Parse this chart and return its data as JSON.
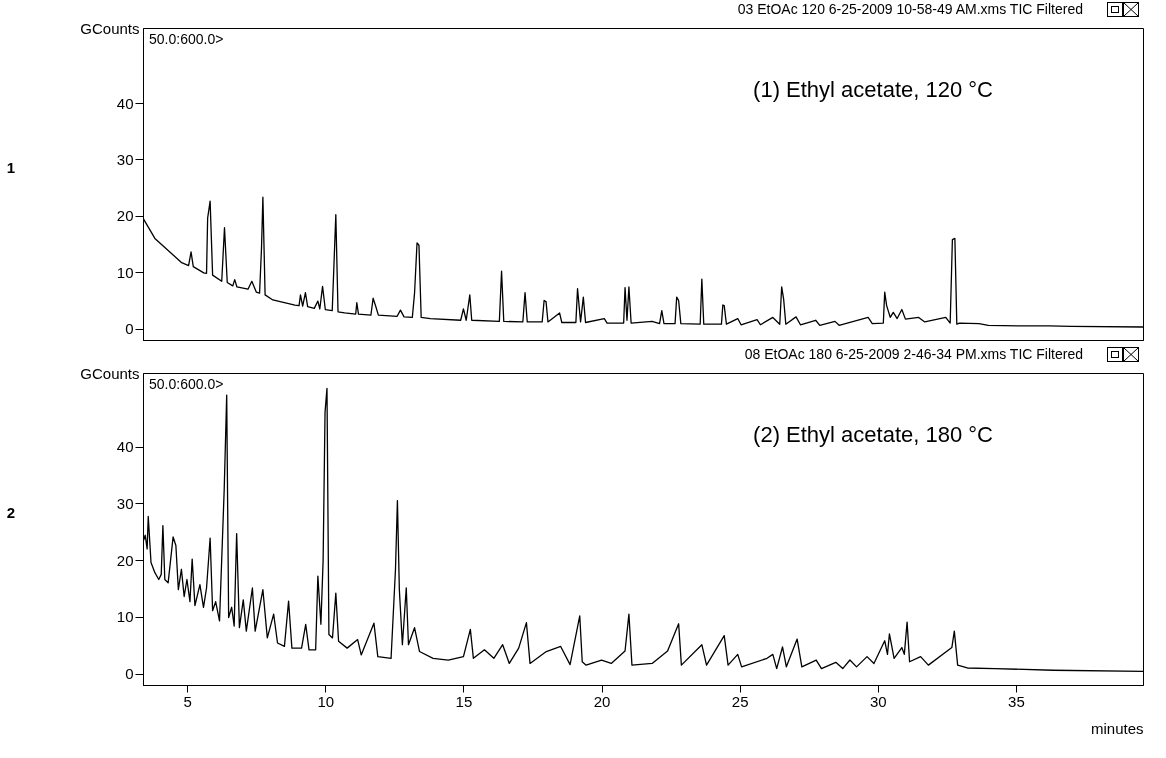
{
  "chart_data": [
    {
      "type": "line",
      "title": "03 EtOAc 120 6-25-2009 10-58-49 AM.xms TIC Filtered",
      "ylabel": "GCounts",
      "annotations": [
        "50.0:600.0>",
        "(1) Ethyl acetate, 120 °C",
        "1"
      ],
      "xlim": [
        3.4,
        39.6
      ],
      "ylim": [
        -2,
        53.3
      ],
      "yticks": [
        0,
        10,
        20,
        30,
        40
      ],
      "tick_labels": "y",
      "x": [
        3.4,
        3.83,
        4.8,
        5.05,
        5.14,
        5.22,
        5.6,
        5.7,
        5.74,
        5.83,
        5.92,
        6.25,
        6.35,
        6.45,
        6.65,
        6.72,
        6.8,
        7.2,
        7.34,
        7.5,
        7.62,
        7.69,
        7.74,
        7.82,
        8.1,
        8.9,
        9.05,
        9.1,
        9.18,
        9.28,
        9.36,
        9.6,
        9.73,
        9.8,
        9.9,
        10.0,
        10.25,
        10.31,
        10.38,
        10.46,
        10.7,
        11.1,
        11.14,
        11.2,
        11.65,
        11.73,
        11.83,
        11.92,
        12.6,
        12.72,
        12.85,
        13.15,
        13.23,
        13.32,
        13.39,
        13.47,
        13.8,
        14.9,
        15.0,
        15.1,
        15.23,
        15.3,
        16.3,
        16.38,
        16.46,
        17.15,
        17.23,
        17.31,
        17.85,
        17.92,
        17.99,
        18.06,
        18.48,
        18.56,
        19.07,
        19.13,
        19.24,
        19.34,
        19.42,
        20.1,
        20.2,
        20.8,
        20.85,
        20.92,
        20.99,
        21.07,
        21.83,
        22.1,
        22.18,
        22.26,
        22.66,
        22.72,
        22.79,
        22.87,
        23.57,
        23.63,
        23.7,
        24.34,
        24.39,
        24.44,
        24.52,
        24.93,
        25.05,
        25.63,
        25.75,
        26.2,
        26.45,
        26.52,
        26.59,
        26.67,
        27.04,
        27.2,
        27.75,
        27.9,
        28.45,
        28.6,
        29.65,
        29.8,
        30.2,
        30.25,
        30.32,
        30.45,
        30.56,
        30.7,
        30.87,
        31.0,
        31.48,
        31.7,
        32.46,
        32.62,
        32.7,
        32.79,
        32.86,
        32.96,
        33.66,
        34.0,
        35.2,
        36.2,
        37.0,
        39.6
      ],
      "series": [
        {
          "color": "#000000",
          "values": [
            19.6,
            16,
            11.7,
            11.2,
            13.6,
            11,
            9.9,
            9.8,
            19.6,
            22.6,
            9.5,
            8.4,
            17.9,
            8.2,
            7.6,
            8.7,
            7.4,
            7.0,
            8.4,
            6.5,
            6.3,
            14.3,
            23.3,
            6.0,
            5.1,
            4.2,
            4.1,
            6.0,
            4.0,
            6.4,
            3.9,
            3.6,
            4.9,
            3.5,
            7.5,
            3.4,
            3.2,
            11,
            20.2,
            3.0,
            2.8,
            2.6,
            4.6,
            2.6,
            2.4,
            5.4,
            3.9,
            2.4,
            2.2,
            3.3,
            2.1,
            2.0,
            6.3,
            15.2,
            14.8,
            2.0,
            1.8,
            1.5,
            3.5,
            1.5,
            6.0,
            1.5,
            1.3,
            10.2,
            1.3,
            1.2,
            6.4,
            1.2,
            1.2,
            5.0,
            4.8,
            1.2,
            2.8,
            1.1,
            1.1,
            7.1,
            1.2,
            5.6,
            1.1,
            1.8,
            1.0,
            1.0,
            7.3,
            1.5,
            7.4,
            1.0,
            1.3,
            0.9,
            3.2,
            0.9,
            0.9,
            5.6,
            5.0,
            0.9,
            0.8,
            8.8,
            0.8,
            0.8,
            4.2,
            4.1,
            0.8,
            1.8,
            0.7,
            1.6,
            0.7,
            2.0,
            0.8,
            7.4,
            5.3,
            0.8,
            2.1,
            0.7,
            1.5,
            0.6,
            1.3,
            0.6,
            2.0,
            0.9,
            1.0,
            6.5,
            4.1,
            2.0,
            2.9,
            1.8,
            3.4,
            1.7,
            2.0,
            1.2,
            2.0,
            1.0,
            15.8,
            16.0,
            0.8,
            1.0,
            0.9,
            0.6,
            0.5,
            0.5,
            0.4,
            0.3
          ]
        }
      ]
    },
    {
      "type": "line",
      "title": "08 EtOAc 180 6-25-2009 2-46-34 PM.xms TIC Filtered",
      "ylabel": "GCounts",
      "xlabel": "minutes",
      "annotations": [
        "50.0:600.0>",
        "(2) Ethyl acetate, 180 °C",
        "2"
      ],
      "xlim": [
        3.4,
        39.6
      ],
      "ylim": [
        -2,
        53
      ],
      "xticks": [
        5,
        10,
        15,
        20,
        25,
        30,
        35
      ],
      "yticks": [
        0,
        10,
        20,
        30,
        40
      ],
      "x": [
        3.4,
        3.48,
        3.55,
        3.59,
        3.69,
        3.83,
        3.97,
        4.06,
        4.12,
        4.19,
        4.31,
        4.49,
        4.59,
        4.68,
        4.79,
        4.89,
        4.99,
        5.1,
        5.18,
        5.28,
        5.46,
        5.59,
        5.7,
        5.83,
        5.92,
        6.03,
        6.17,
        6.34,
        6.43,
        6.5,
        6.61,
        6.7,
        6.79,
        6.89,
        7.03,
        7.14,
        7.36,
        7.46,
        7.74,
        7.9,
        8.13,
        8.27,
        8.52,
        8.67,
        8.79,
        9.14,
        9.29,
        9.41,
        9.65,
        9.73,
        9.84,
        9.92,
        9.99,
        10.06,
        10.13,
        10.26,
        10.38,
        10.48,
        10.79,
        11.17,
        11.3,
        11.76,
        11.9,
        12.38,
        12.54,
        12.61,
        12.68,
        12.79,
        12.93,
        13.01,
        13.23,
        13.41,
        13.9,
        14.45,
        15.0,
        15.25,
        15.36,
        15.76,
        16.1,
        16.42,
        16.66,
        17.0,
        17.28,
        17.41,
        18.0,
        18.52,
        18.86,
        19.21,
        19.3,
        19.44,
        20.0,
        20.35,
        20.85,
        20.99,
        21.1,
        21.83,
        22.39,
        22.79,
        22.89,
        23.63,
        23.8,
        24.44,
        24.58,
        24.93,
        25.07,
        25.99,
        26.2,
        26.34,
        26.55,
        26.69,
        27.08,
        27.25,
        27.77,
        27.96,
        28.48,
        28.73,
        28.99,
        29.23,
        29.61,
        29.86,
        30.25,
        30.35,
        30.42,
        30.59,
        30.87,
        30.96,
        31.06,
        31.15,
        31.55,
        31.83,
        32.68,
        32.77,
        32.89,
        33.24,
        34.23,
        36.34,
        39.6
      ],
      "series": [
        {
          "color": "#000000",
          "values": [
            23.2,
            24.4,
            22,
            27.7,
            19.6,
            17.8,
            16.6,
            17.5,
            26.1,
            16.6,
            16,
            24.1,
            22.6,
            14.8,
            18.4,
            13.6,
            16.6,
            12.7,
            20.2,
            12,
            15.7,
            11.7,
            15.1,
            23.9,
            11.1,
            12.7,
            9.3,
            32.5,
            49.1,
            9.9,
            11.7,
            8.4,
            24.7,
            8.1,
            13,
            7.5,
            15.1,
            7.5,
            14.8,
            6.3,
            10.5,
            5.4,
            4.8,
            12.8,
            4.5,
            4.5,
            8.7,
            4.2,
            4.2,
            17.2,
            8.7,
            19.9,
            46.1,
            50.3,
            6.9,
            6.3,
            14.2,
            5.7,
            4.5,
            6.0,
            3.3,
            8.9,
            3.0,
            2.7,
            18.4,
            30.5,
            14.8,
            5.1,
            15.1,
            5.1,
            8.1,
            3.9,
            2.7,
            2.4,
            3.0,
            7.8,
            2.7,
            4.2,
            2.7,
            5.1,
            1.8,
            4.5,
            9.0,
            1.8,
            3.9,
            4.8,
            1.6,
            10.2,
            2.1,
            1.5,
            2.4,
            1.8,
            4.0,
            10.5,
            1.5,
            1.8,
            4.0,
            8.8,
            1.5,
            5.1,
            1.5,
            6.7,
            1.5,
            3.4,
            1.2,
            2.7,
            3.4,
            0.9,
            4.7,
            1.2,
            6.1,
            1.2,
            2.4,
            0.9,
            2.0,
            0.9,
            2.4,
            1.2,
            3.0,
            1.8,
            5.8,
            3.4,
            7.0,
            2.7,
            4.6,
            3.4,
            9.1,
            2.1,
            3.0,
            1.5,
            4.6,
            7.5,
            1.5,
            1.0,
            0.9,
            0.6,
            0.4
          ]
        }
      ]
    }
  ]
}
